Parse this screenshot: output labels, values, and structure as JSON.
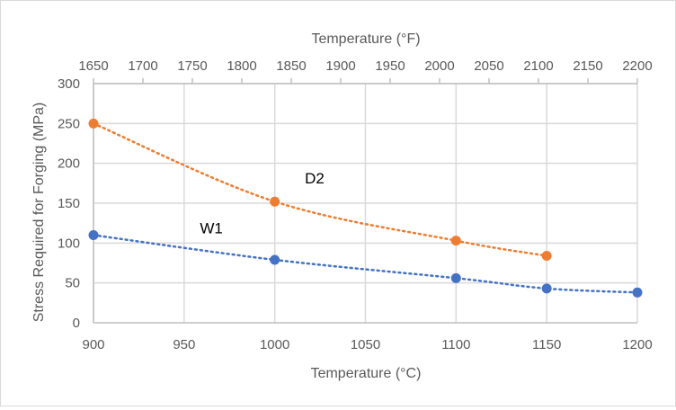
{
  "chart_data": {
    "type": "line",
    "title": "",
    "xlabel": "Temperature (°C)",
    "x2label": "Temperature (°F)",
    "ylabel": "Stress Required for Forging (MPa)",
    "xlim": [
      900,
      1200
    ],
    "x2lim": [
      1650,
      2200
    ],
    "ylim": [
      0,
      300
    ],
    "xticks": [
      900,
      950,
      1000,
      1050,
      1100,
      1150,
      1200
    ],
    "x2ticks": [
      1650,
      1700,
      1750,
      1800,
      1850,
      1900,
      1950,
      2000,
      2050,
      2100,
      2150,
      2200
    ],
    "yticks": [
      0,
      50,
      100,
      150,
      200,
      250,
      300
    ],
    "grid": true,
    "legend": "none",
    "series": [
      {
        "name": "D2",
        "color": "#ED7D31",
        "line_style": "dotted",
        "x": [
          900,
          1000,
          1100,
          1150
        ],
        "y": [
          250,
          152,
          103,
          84
        ]
      },
      {
        "name": "W1",
        "color": "#4472C4",
        "line_style": "dotted",
        "x": [
          900,
          1000,
          1100,
          1150,
          1200
        ],
        "y": [
          110,
          79,
          56,
          43,
          38
        ]
      }
    ],
    "annotations": [
      {
        "text": "D2",
        "x": 1022,
        "y": 175
      },
      {
        "text": "W1",
        "x": 965,
        "y": 112
      }
    ]
  }
}
